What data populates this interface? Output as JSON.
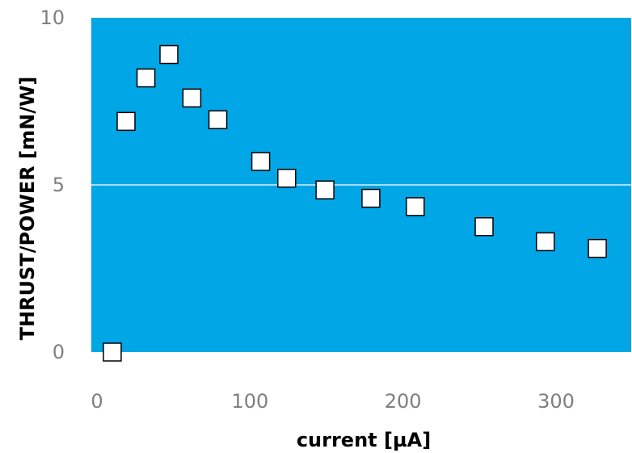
{
  "chart_data": {
    "type": "scatter",
    "title": "",
    "xlabel": "current [µA]",
    "ylabel": "THRUST/POWER  [mN/W]",
    "xlim": [
      0,
      330
    ],
    "ylim": [
      0,
      10
    ],
    "xticks": [
      0,
      100,
      200,
      300
    ],
    "yticks": [
      0,
      5,
      10
    ],
    "grid": "horizontal",
    "legend": "none",
    "colors": {
      "plot_background": "#00a6e6",
      "gridline": "#d7eef8",
      "marker_fill": "#ffffff",
      "marker_edge": "#000000",
      "tick_label": "#7f7f7f"
    },
    "series": [
      {
        "marker": "square",
        "x": [
          10,
          19,
          32,
          47,
          62,
          79,
          107,
          124,
          149,
          179,
          208,
          253,
          293,
          327
        ],
        "y": [
          0.0,
          6.9,
          8.2,
          8.9,
          7.6,
          6.95,
          5.7,
          5.2,
          4.85,
          4.6,
          4.35,
          3.75,
          3.3,
          3.1
        ]
      }
    ]
  }
}
